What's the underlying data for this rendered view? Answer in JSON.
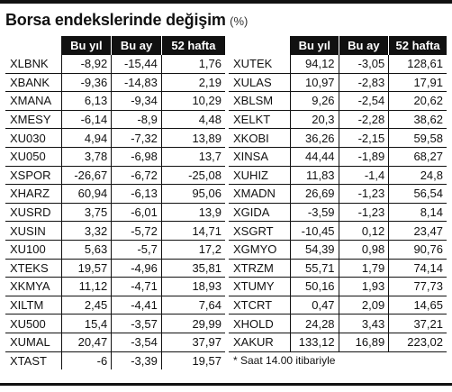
{
  "title": "Borsa endekslerinde değişim",
  "unit": "(%)",
  "headers": [
    "",
    "Bu yıl",
    "Bu ay",
    "52 hafta"
  ],
  "left_rows": [
    [
      "XLBNK",
      "-8,92",
      "-15,44",
      "1,76"
    ],
    [
      "XBANK",
      "-9,36",
      "-14,83",
      "2,19"
    ],
    [
      "XMANA",
      "6,13",
      "-9,34",
      "10,29"
    ],
    [
      "XMESY",
      "-6,14",
      "-8,9",
      "4,48"
    ],
    [
      "XU030",
      "4,94",
      "-7,32",
      "13,89"
    ],
    [
      "XU050",
      "3,78",
      "-6,98",
      "13,7"
    ],
    [
      "XSPOR",
      "-26,67",
      "-6,72",
      "-25,08"
    ],
    [
      "XHARZ",
      "60,94",
      "-6,13",
      "95,06"
    ],
    [
      "XUSRD",
      "3,75",
      "-6,01",
      "13,9"
    ],
    [
      "XUSIN",
      "3,32",
      "-5,72",
      "14,71"
    ],
    [
      "XU100",
      "5,63",
      "-5,7",
      "17,2"
    ],
    [
      "XTEKS",
      "19,57",
      "-4,96",
      "35,81"
    ],
    [
      "XKMYA",
      "11,12",
      "-4,71",
      "18,93"
    ],
    [
      "XILTM",
      "2,45",
      "-4,41",
      "7,64"
    ],
    [
      "XU500",
      "15,4",
      "-3,57",
      "29,99"
    ],
    [
      "XUMAL",
      "20,47",
      "-3,54",
      "37,97"
    ],
    [
      "XTAST",
      "-6",
      "-3,39",
      "19,57"
    ]
  ],
  "right_rows": [
    [
      "XUTEK",
      "94,12",
      "-3,05",
      "128,61"
    ],
    [
      "XULAS",
      "10,97",
      "-2,83",
      "17,91"
    ],
    [
      "XBLSM",
      "9,26",
      "-2,54",
      "20,62"
    ],
    [
      "XELKT",
      "20,3",
      "-2,28",
      "38,62"
    ],
    [
      "XKOBI",
      "36,26",
      "-2,15",
      "59,58"
    ],
    [
      "XINSA",
      "44,44",
      "-1,89",
      "68,27"
    ],
    [
      "XUHIZ",
      "11,83",
      "-1,4",
      "24,8"
    ],
    [
      "XMADN",
      "26,69",
      "-1,23",
      "56,54"
    ],
    [
      "XGIDA",
      "-3,59",
      "-1,23",
      "8,14"
    ],
    [
      "XSGRT",
      "-10,45",
      "0,12",
      "23,47"
    ],
    [
      "XGMYO",
      "54,39",
      "0,98",
      "90,76"
    ],
    [
      "XTRZM",
      "55,71",
      "1,79",
      "74,14"
    ],
    [
      "XTUMY",
      "50,16",
      "1,93",
      "77,73"
    ],
    [
      "XTCRT",
      "0,47",
      "2,09",
      "14,65"
    ],
    [
      "XHOLD",
      "24,28",
      "3,43",
      "37,21"
    ],
    [
      "XAKUR",
      "133,12",
      "16,89",
      "223,02"
    ]
  ],
  "footnote": "* Saat 14.00 itibariyle"
}
